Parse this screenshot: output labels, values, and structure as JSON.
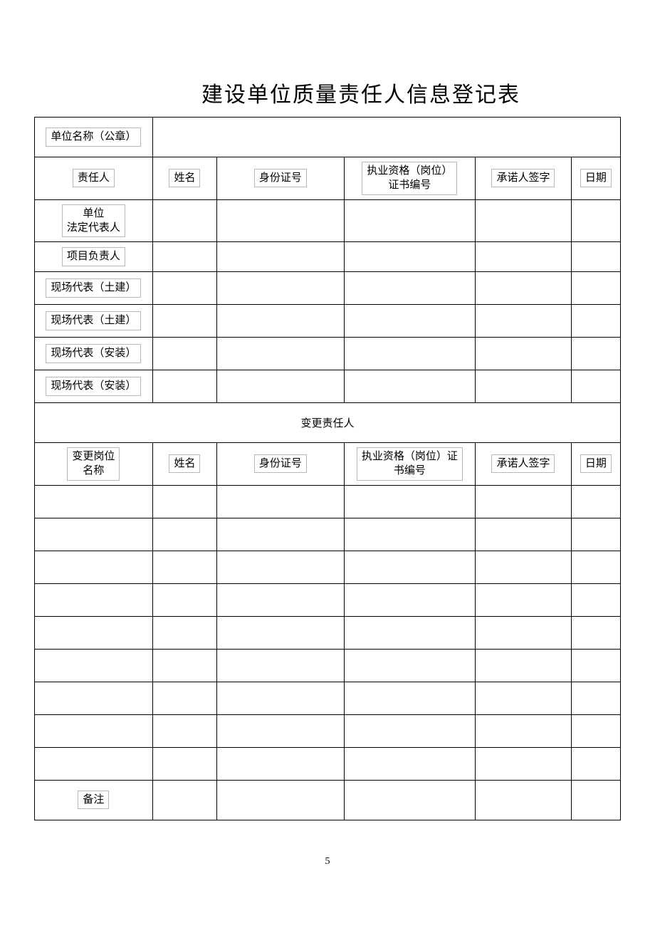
{
  "title": "建设单位质量责任人信息登记表",
  "unit_name_label": "单位名称（公章）",
  "header1": {
    "responsible": "责任人",
    "name": "姓名",
    "id_no": "身份证号",
    "qual_no": "执业资格（岗位）\n证书编号",
    "sign": "承诺人签字",
    "date": "日期"
  },
  "roles": [
    "单位\n法定代表人",
    "项目负责人",
    "现场代表（土建）",
    "现场代表（土建）",
    "现场代表（安装）",
    "现场代表（安装）"
  ],
  "change_section_title": "变更责任人",
  "header2": {
    "position": "变更岗位\n名称",
    "name": "姓名",
    "id_no": "身份证号",
    "qual_no": "执业资格（岗位）证\n书编号",
    "sign": "承诺人签字",
    "date": "日期"
  },
  "empty_change_rows": 9,
  "remark_label": "备注",
  "page_number": "5",
  "colors": {
    "border": "#000000",
    "inner_border": "#b8b8b8",
    "background": "#ffffff",
    "text": "#000000"
  },
  "fonts": {
    "title_size": 30,
    "body_size": 15,
    "page_num_size": 14
  }
}
